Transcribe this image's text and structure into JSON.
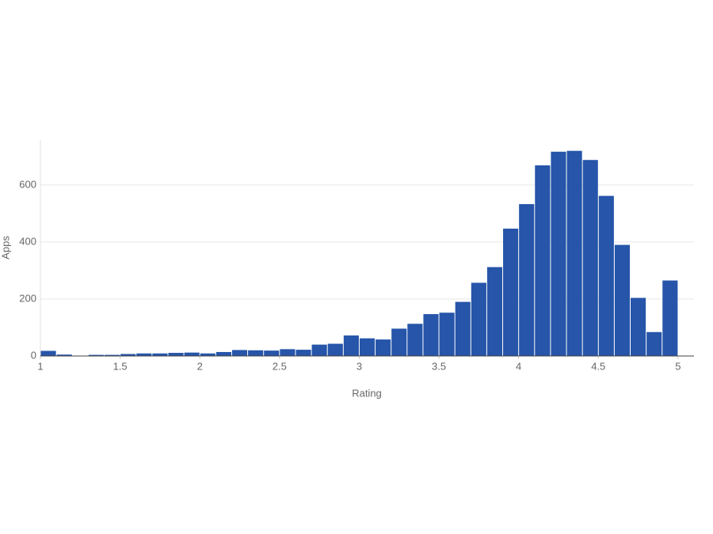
{
  "chart_data": {
    "type": "histogram",
    "x_label": "Rating",
    "y_label": "Apps",
    "bins": [
      1.0,
      1.1,
      1.2,
      1.3,
      1.4,
      1.5,
      1.6,
      1.7,
      1.8,
      1.9,
      2.0,
      2.1,
      2.2,
      2.3,
      2.4,
      2.5,
      2.6,
      2.7,
      2.8,
      2.9,
      3.0,
      3.1,
      3.2,
      3.3,
      3.4,
      3.5,
      3.6,
      3.7,
      3.8,
      3.9,
      4.0,
      4.1,
      4.2,
      4.3,
      4.4,
      4.5,
      4.6,
      4.7,
      4.8,
      4.9,
      5.0
    ],
    "counts": [
      18,
      5,
      0,
      4,
      4,
      7,
      9,
      9,
      11,
      12,
      9,
      14,
      21,
      20,
      19,
      24,
      22,
      40,
      43,
      72,
      62,
      58,
      96,
      113,
      147,
      152,
      190,
      257,
      312,
      447,
      533,
      669,
      717,
      720,
      688,
      562,
      390,
      204,
      84,
      265
    ],
    "color": "#2655a9",
    "xlim": [
      1,
      5.1
    ],
    "xticks": [
      1,
      1.5,
      2,
      2.5,
      3,
      3.5,
      4,
      4.5,
      5
    ],
    "ylim": [
      0,
      758
    ],
    "yticks": [
      0,
      200,
      400,
      600
    ],
    "grid": true
  }
}
